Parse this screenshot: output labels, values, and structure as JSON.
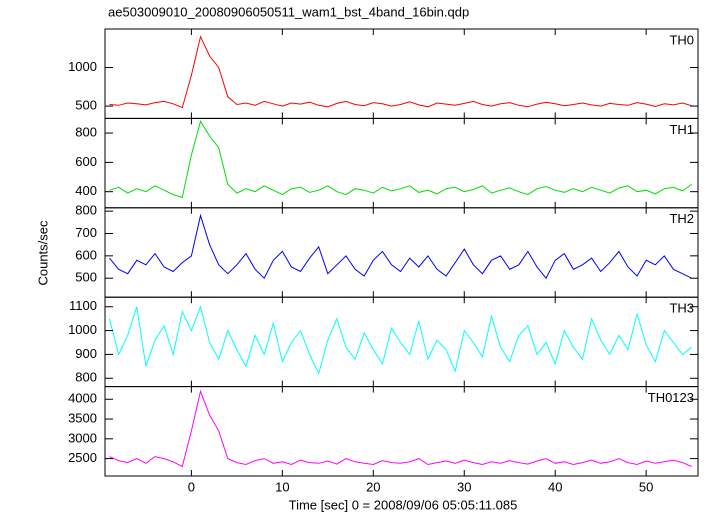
{
  "chart_data": {
    "type": "line",
    "title": "ae503009010_20080906050511_wam1_bst_4band_16bin.qdp",
    "xlabel": "Time [sec] 0 = 2008/09/06 05:05:11.085",
    "ylabel": "Counts/sec",
    "x": [
      -9,
      -8,
      -7,
      -6,
      -5,
      -4,
      -3,
      -2,
      -1,
      0,
      1,
      2,
      3,
      4,
      5,
      6,
      7,
      8,
      9,
      10,
      11,
      12,
      13,
      14,
      15,
      16,
      17,
      18,
      19,
      20,
      21,
      22,
      23,
      24,
      25,
      26,
      27,
      28,
      29,
      30,
      31,
      32,
      33,
      34,
      35,
      36,
      37,
      38,
      39,
      40,
      41,
      42,
      43,
      44,
      45,
      46,
      47,
      48,
      49,
      50,
      51,
      52,
      53,
      54,
      55
    ],
    "xlim": [
      -9.5,
      55.7
    ],
    "xticks": [
      0,
      10,
      20,
      30,
      40,
      50
    ],
    "series": [
      {
        "name": "TH0",
        "color": "#ff0000",
        "ylim": [
          340,
          1500
        ],
        "yticks": [
          500,
          1000
        ],
        "values": [
          520,
          510,
          540,
          530,
          515,
          545,
          560,
          530,
          480,
          900,
          1400,
          1150,
          1000,
          620,
          520,
          540,
          510,
          560,
          530,
          500,
          540,
          525,
          550,
          510,
          490,
          535,
          560,
          520,
          505,
          545,
          530,
          500,
          520,
          555,
          515,
          490,
          540,
          525,
          510,
          535,
          560,
          520,
          500,
          530,
          545,
          510,
          490,
          525,
          550,
          530,
          505,
          520,
          540,
          515,
          500,
          535,
          520,
          510,
          545,
          525,
          495,
          530,
          515,
          540,
          505
        ]
      },
      {
        "name": "TH1",
        "color": "#00e000",
        "ylim": [
          290,
          900
        ],
        "yticks": [
          400,
          600,
          800
        ],
        "values": [
          410,
          430,
          390,
          420,
          400,
          440,
          410,
          380,
          360,
          650,
          880,
          780,
          700,
          450,
          390,
          420,
          400,
          440,
          410,
          380,
          420,
          430,
          395,
          410,
          440,
          400,
          380,
          420,
          410,
          390,
          430,
          405,
          420,
          440,
          395,
          410,
          385,
          420,
          430,
          400,
          415,
          440,
          390,
          410,
          425,
          400,
          380,
          420,
          435,
          410,
          395,
          420,
          400,
          430,
          410,
          390,
          425,
          440,
          400,
          410,
          385,
          420,
          430,
          405,
          450
        ]
      },
      {
        "name": "TH2",
        "color": "#0000ff",
        "ylim": [
          415,
          815
        ],
        "yticks": [
          500,
          600,
          700,
          800
        ],
        "values": [
          590,
          540,
          520,
          580,
          560,
          610,
          550,
          530,
          570,
          600,
          780,
          650,
          560,
          520,
          560,
          610,
          540,
          500,
          580,
          620,
          550,
          530,
          590,
          640,
          520,
          560,
          600,
          540,
          510,
          580,
          620,
          560,
          530,
          590,
          550,
          600,
          540,
          510,
          570,
          630,
          560,
          520,
          580,
          600,
          540,
          560,
          620,
          550,
          500,
          580,
          610,
          540,
          560,
          590,
          530,
          570,
          620,
          550,
          510,
          580,
          560,
          600,
          540,
          520,
          500
        ]
      },
      {
        "name": "TH3",
        "color": "#00ffff",
        "ylim": [
          765,
          1140
        ],
        "yticks": [
          800,
          900,
          1000,
          1100
        ],
        "values": [
          1050,
          900,
          980,
          1100,
          850,
          960,
          1020,
          900,
          1080,
          1000,
          1100,
          950,
          880,
          1000,
          920,
          850,
          980,
          900,
          1030,
          870,
          950,
          1000,
          900,
          820,
          960,
          1050,
          930,
          880,
          990,
          920,
          860,
          1010,
          950,
          900,
          1040,
          880,
          960,
          920,
          830,
          1000,
          950,
          890,
          1060,
          930,
          870,
          980,
          1020,
          900,
          950,
          860,
          1000,
          930,
          880,
          1050,
          960,
          900,
          980,
          920,
          1070,
          940,
          870,
          1000,
          950,
          900,
          930
        ]
      },
      {
        "name": "TH0123",
        "color": "#ff00ff",
        "ylim": [
          2060,
          4320
        ],
        "yticks": [
          2500,
          3000,
          3500,
          4000
        ],
        "values": [
          2550,
          2450,
          2400,
          2500,
          2380,
          2550,
          2500,
          2420,
          2300,
          3200,
          4200,
          3600,
          3200,
          2500,
          2400,
          2350,
          2450,
          2500,
          2380,
          2420,
          2350,
          2460,
          2400,
          2380,
          2440,
          2360,
          2500,
          2420,
          2380,
          2350,
          2450,
          2400,
          2380,
          2420,
          2500,
          2350,
          2400,
          2440,
          2380,
          2460,
          2400,
          2350,
          2420,
          2380,
          2450,
          2400,
          2360,
          2440,
          2500,
          2380,
          2420,
          2350,
          2400,
          2460,
          2380,
          2420,
          2500,
          2400,
          2350,
          2440,
          2380,
          2420,
          2460,
          2400,
          2300
        ]
      }
    ]
  }
}
